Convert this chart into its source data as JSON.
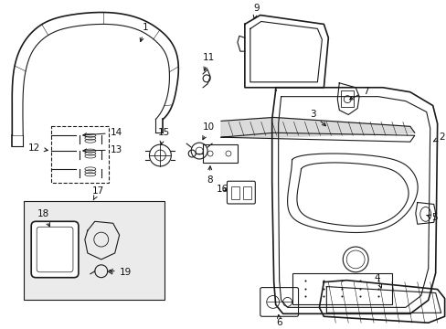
{
  "background_color": "#ffffff",
  "fig_width": 4.89,
  "fig_height": 3.6,
  "dpi": 100,
  "line_color": "#1a1a1a",
  "label_fontsize": 7.5,
  "gray_fill": "#d8d8d8",
  "light_gray": "#eeeeee"
}
